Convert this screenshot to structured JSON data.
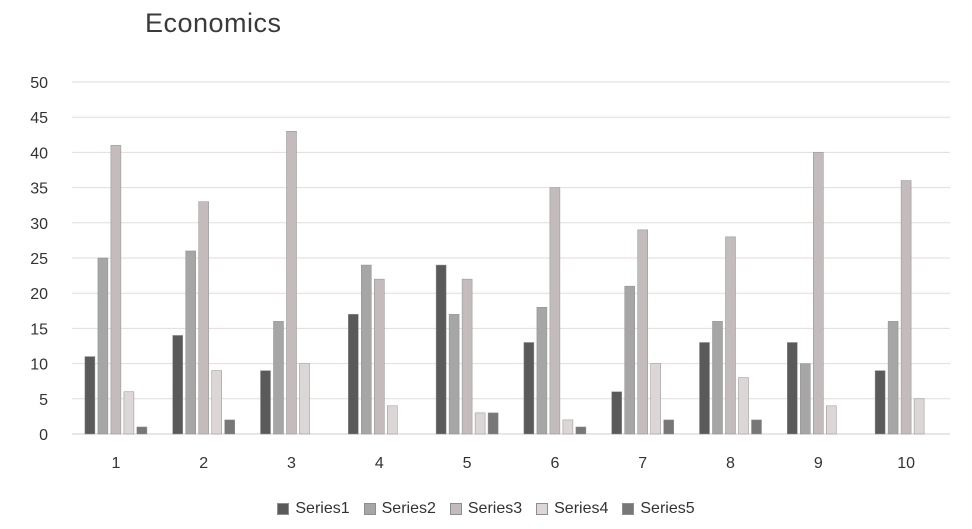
{
  "chart_data": {
    "type": "bar",
    "title": "Economics",
    "xlabel": "",
    "ylabel": "",
    "categories": [
      "1",
      "2",
      "3",
      "4",
      "5",
      "6",
      "7",
      "8",
      "9",
      "10"
    ],
    "ylim": [
      0,
      50
    ],
    "yticks": [
      0,
      5,
      10,
      15,
      20,
      25,
      30,
      35,
      40,
      45,
      50
    ],
    "grid": true,
    "legend": "bottom",
    "series": [
      {
        "name": "Series1",
        "color": "#5a5a5a",
        "values": [
          11,
          14,
          9,
          17,
          24,
          13,
          6,
          13,
          13,
          9
        ]
      },
      {
        "name": "Series2",
        "color": "#a6a6a6",
        "values": [
          25,
          26,
          16,
          24,
          17,
          18,
          21,
          16,
          10,
          16
        ]
      },
      {
        "name": "Series3",
        "color": "#c4bcbc",
        "values": [
          41,
          33,
          43,
          22,
          22,
          35,
          29,
          28,
          40,
          36
        ]
      },
      {
        "name": "Series4",
        "color": "#ddd6d6",
        "values": [
          6,
          9,
          10,
          4,
          3,
          2,
          10,
          8,
          4,
          5
        ]
      },
      {
        "name": "Series5",
        "color": "#777777",
        "values": [
          1,
          2,
          0,
          0,
          3,
          1,
          2,
          2,
          0,
          0
        ]
      }
    ]
  }
}
